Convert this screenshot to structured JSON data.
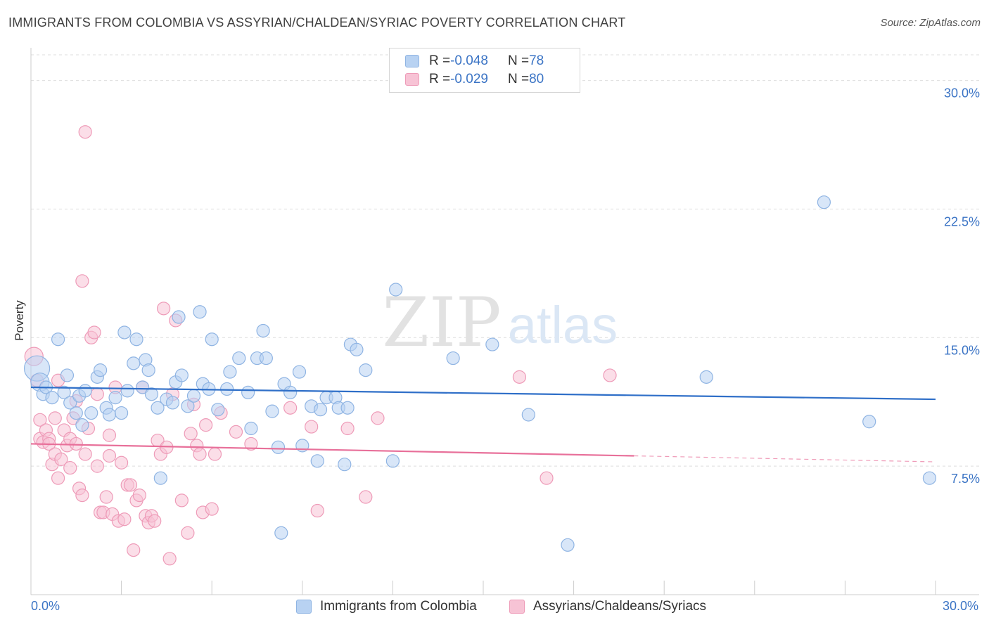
{
  "header": {
    "title": "IMMIGRANTS FROM COLOMBIA VS ASSYRIAN/CHALDEAN/SYRIAC POVERTY CORRELATION CHART",
    "source": "Source: ZipAtlas.com"
  },
  "watermark": {
    "zip": "ZIP",
    "atlas": "atlas"
  },
  "legend": {
    "rows": [
      {
        "r_label": "R = ",
        "r_value": "-0.048",
        "n_label": "N = ",
        "n_value": "78"
      },
      {
        "r_label": "R = ",
        "r_value": "-0.029",
        "n_label": "N = ",
        "n_value": "80"
      }
    ]
  },
  "colors": {
    "blue_fill": "#b8d2f2",
    "blue_stroke": "#8fb4e3",
    "blue_line": "#2f6fc8",
    "pink_fill": "#f7c3d5",
    "pink_stroke": "#ee9bb8",
    "pink_line": "#e8709a",
    "tick_text": "#3b74c5",
    "grid": "#dedede"
  },
  "chart_data": {
    "type": "scatter",
    "title": "IMMIGRANTS FROM COLOMBIA VS ASSYRIAN/CHALDEAN/SYRIAC POVERTY CORRELATION CHART",
    "xlabel": "",
    "ylabel": "Poverty",
    "xlim": [
      0,
      30
    ],
    "ylim": [
      0,
      31.5
    ],
    "x_tick_labels": [
      "0.0%",
      "30.0%"
    ],
    "y_ticks": [
      7.5,
      15.0,
      22.5,
      30.0
    ],
    "y_tick_labels": [
      "7.5%",
      "15.0%",
      "22.5%",
      "30.0%"
    ],
    "grid": true,
    "legend_position": "top-center",
    "series": [
      {
        "name": "Immigrants from Colombia",
        "color": "#b8d2f2",
        "trend": {
          "x": [
            0,
            30
          ],
          "y": [
            12.1,
            11.4
          ]
        },
        "points": [
          [
            0.2,
            13.2
          ],
          [
            0.3,
            12.4
          ],
          [
            0.4,
            11.7
          ],
          [
            0.5,
            12.1
          ],
          [
            0.7,
            11.5
          ],
          [
            0.9,
            14.9
          ],
          [
            1.1,
            11.8
          ],
          [
            1.2,
            12.8
          ],
          [
            1.3,
            11.2
          ],
          [
            1.5,
            10.6
          ],
          [
            1.6,
            11.6
          ],
          [
            1.7,
            9.9
          ],
          [
            1.8,
            11.9
          ],
          [
            2.0,
            10.6
          ],
          [
            2.2,
            12.7
          ],
          [
            2.3,
            13.1
          ],
          [
            2.5,
            10.9
          ],
          [
            2.6,
            10.5
          ],
          [
            2.8,
            11.5
          ],
          [
            3.0,
            10.6
          ],
          [
            3.1,
            15.3
          ],
          [
            3.2,
            11.9
          ],
          [
            3.4,
            13.5
          ],
          [
            3.5,
            14.9
          ],
          [
            3.7,
            12.1
          ],
          [
            3.8,
            13.7
          ],
          [
            3.9,
            13.1
          ],
          [
            4.0,
            11.7
          ],
          [
            4.2,
            10.9
          ],
          [
            4.3,
            6.8
          ],
          [
            4.5,
            11.4
          ],
          [
            4.7,
            11.2
          ],
          [
            4.8,
            12.4
          ],
          [
            4.9,
            16.2
          ],
          [
            5.0,
            12.8
          ],
          [
            5.2,
            11.0
          ],
          [
            5.4,
            11.6
          ],
          [
            5.6,
            16.5
          ],
          [
            5.7,
            12.3
          ],
          [
            5.9,
            12.0
          ],
          [
            6.0,
            14.9
          ],
          [
            6.2,
            10.8
          ],
          [
            6.5,
            12.0
          ],
          [
            6.6,
            13.0
          ],
          [
            6.9,
            13.8
          ],
          [
            7.2,
            11.8
          ],
          [
            7.3,
            9.7
          ],
          [
            7.5,
            13.8
          ],
          [
            7.7,
            15.4
          ],
          [
            7.8,
            13.8
          ],
          [
            8.0,
            10.7
          ],
          [
            8.2,
            8.6
          ],
          [
            8.3,
            3.6
          ],
          [
            8.4,
            12.3
          ],
          [
            8.6,
            11.8
          ],
          [
            8.9,
            13.0
          ],
          [
            9.0,
            8.7
          ],
          [
            9.3,
            11.0
          ],
          [
            9.5,
            7.8
          ],
          [
            9.6,
            10.8
          ],
          [
            9.8,
            11.5
          ],
          [
            10.1,
            11.5
          ],
          [
            10.2,
            10.9
          ],
          [
            10.4,
            7.6
          ],
          [
            10.5,
            10.9
          ],
          [
            10.6,
            14.6
          ],
          [
            10.8,
            14.3
          ],
          [
            11.1,
            13.1
          ],
          [
            12.0,
            7.8
          ],
          [
            12.1,
            17.8
          ],
          [
            14.0,
            13.8
          ],
          [
            15.3,
            14.6
          ],
          [
            16.5,
            10.5
          ],
          [
            17.8,
            2.9
          ],
          [
            22.4,
            12.7
          ],
          [
            26.3,
            22.9
          ],
          [
            27.8,
            10.1
          ],
          [
            29.8,
            6.8
          ]
        ]
      },
      {
        "name": "Assyrians/Chaldeans/Syriacs",
        "color": "#f7c3d5",
        "trend": {
          "x": [
            0,
            20
          ],
          "y": [
            8.8,
            8.1
          ]
        },
        "points": [
          [
            0.1,
            13.9
          ],
          [
            0.2,
            12.5
          ],
          [
            0.3,
            10.2
          ],
          [
            0.3,
            9.1
          ],
          [
            0.4,
            8.9
          ],
          [
            0.5,
            9.6
          ],
          [
            0.6,
            9.1
          ],
          [
            0.6,
            8.8
          ],
          [
            0.7,
            7.6
          ],
          [
            0.8,
            8.2
          ],
          [
            0.8,
            10.3
          ],
          [
            0.9,
            6.8
          ],
          [
            0.9,
            12.5
          ],
          [
            1.0,
            7.9
          ],
          [
            1.1,
            9.6
          ],
          [
            1.2,
            8.7
          ],
          [
            1.3,
            7.4
          ],
          [
            1.3,
            9.1
          ],
          [
            1.4,
            10.3
          ],
          [
            1.5,
            11.3
          ],
          [
            1.5,
            8.8
          ],
          [
            1.6,
            6.2
          ],
          [
            1.7,
            5.8
          ],
          [
            1.7,
            18.3
          ],
          [
            1.8,
            8.2
          ],
          [
            1.8,
            27.0
          ],
          [
            1.9,
            9.7
          ],
          [
            2.0,
            15.0
          ],
          [
            2.1,
            15.3
          ],
          [
            2.2,
            11.7
          ],
          [
            2.2,
            7.5
          ],
          [
            2.3,
            4.8
          ],
          [
            2.4,
            4.8
          ],
          [
            2.5,
            5.7
          ],
          [
            2.6,
            8.1
          ],
          [
            2.6,
            9.3
          ],
          [
            2.7,
            4.7
          ],
          [
            2.8,
            12.1
          ],
          [
            2.9,
            4.3
          ],
          [
            3.0,
            7.7
          ],
          [
            3.1,
            4.4
          ],
          [
            3.2,
            6.4
          ],
          [
            3.3,
            6.4
          ],
          [
            3.4,
            2.6
          ],
          [
            3.5,
            5.5
          ],
          [
            3.6,
            5.8
          ],
          [
            3.7,
            12.1
          ],
          [
            3.8,
            4.6
          ],
          [
            3.9,
            4.2
          ],
          [
            4.0,
            4.6
          ],
          [
            4.1,
            4.3
          ],
          [
            4.2,
            9.0
          ],
          [
            4.3,
            8.2
          ],
          [
            4.4,
            16.7
          ],
          [
            4.5,
            8.6
          ],
          [
            4.6,
            2.1
          ],
          [
            4.7,
            11.7
          ],
          [
            4.8,
            16.0
          ],
          [
            5.0,
            5.5
          ],
          [
            5.2,
            3.6
          ],
          [
            5.3,
            9.4
          ],
          [
            5.4,
            11.1
          ],
          [
            5.5,
            8.7
          ],
          [
            5.6,
            8.2
          ],
          [
            5.7,
            4.8
          ],
          [
            5.8,
            9.9
          ],
          [
            6.0,
            5.0
          ],
          [
            6.1,
            8.2
          ],
          [
            6.3,
            10.6
          ],
          [
            6.8,
            9.5
          ],
          [
            7.3,
            8.8
          ],
          [
            8.6,
            10.9
          ],
          [
            9.3,
            9.8
          ],
          [
            9.5,
            4.9
          ],
          [
            10.5,
            9.7
          ],
          [
            11.1,
            5.7
          ],
          [
            11.5,
            10.3
          ],
          [
            16.2,
            12.7
          ],
          [
            17.1,
            6.8
          ],
          [
            19.2,
            12.8
          ]
        ]
      }
    ]
  }
}
